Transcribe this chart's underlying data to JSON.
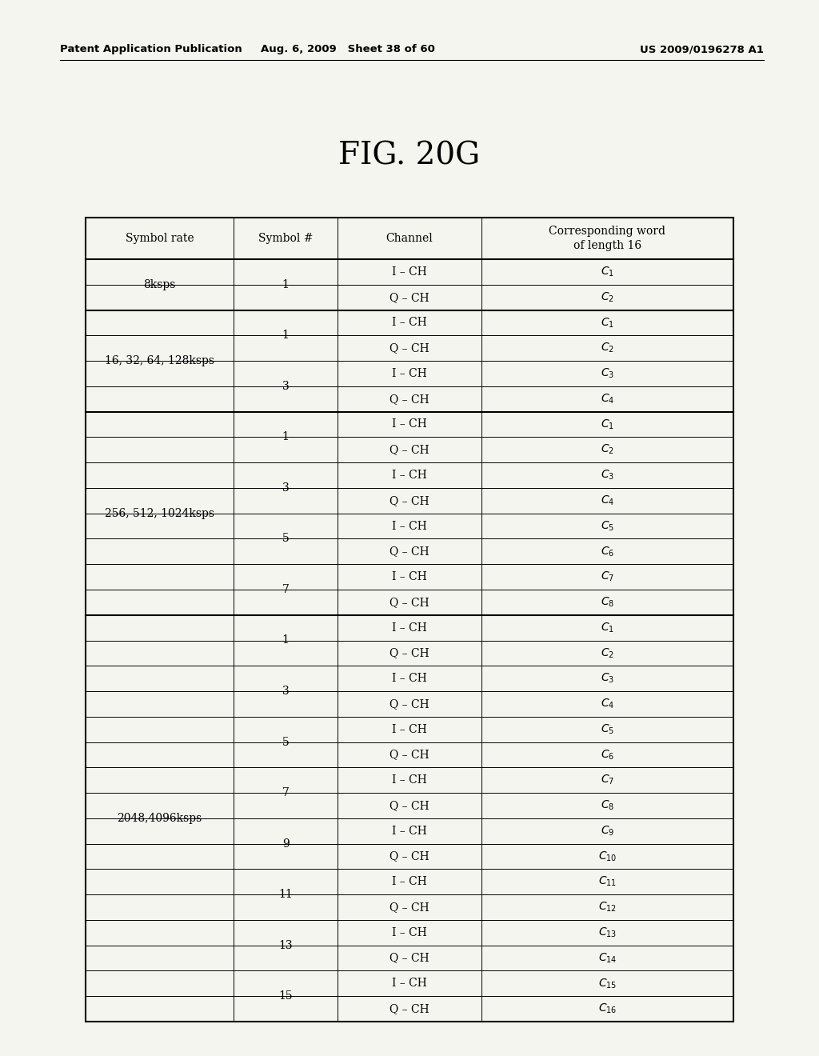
{
  "title": "FIG. 20G",
  "header_line1": "Patent Application Publication",
  "header_line2": "Aug. 6, 2009   Sheet 38 of 60",
  "header_line3": "US 2009/0196278 A1",
  "col_headers": [
    "Symbol rate",
    "Symbol #",
    "Channel",
    "Corresponding word\nof length 16"
  ],
  "rows": [
    {
      "symbol_rate": "8ksps",
      "sr_span": 2,
      "symbol_num": "1",
      "sn_span": 2,
      "channel": "I – CH",
      "word": "C",
      "sub": "1"
    },
    {
      "symbol_rate": "",
      "sr_span": 0,
      "symbol_num": "",
      "sn_span": 0,
      "channel": "Q – CH",
      "word": "C",
      "sub": "2"
    },
    {
      "symbol_rate": "16, 32, 64, 128ksps",
      "sr_span": 4,
      "symbol_num": "1",
      "sn_span": 2,
      "channel": "I – CH",
      "word": "C",
      "sub": "1"
    },
    {
      "symbol_rate": "",
      "sr_span": 0,
      "symbol_num": "",
      "sn_span": 0,
      "channel": "Q – CH",
      "word": "C",
      "sub": "2"
    },
    {
      "symbol_rate": "",
      "sr_span": 0,
      "symbol_num": "3",
      "sn_span": 2,
      "channel": "I – CH",
      "word": "C",
      "sub": "3"
    },
    {
      "symbol_rate": "",
      "sr_span": 0,
      "symbol_num": "",
      "sn_span": 0,
      "channel": "Q – CH",
      "word": "C",
      "sub": "4"
    },
    {
      "symbol_rate": "256, 512, 1024ksps",
      "sr_span": 8,
      "symbol_num": "1",
      "sn_span": 2,
      "channel": "I – CH",
      "word": "C",
      "sub": "1"
    },
    {
      "symbol_rate": "",
      "sr_span": 0,
      "symbol_num": "",
      "sn_span": 0,
      "channel": "Q – CH",
      "word": "C",
      "sub": "2"
    },
    {
      "symbol_rate": "",
      "sr_span": 0,
      "symbol_num": "3",
      "sn_span": 2,
      "channel": "I – CH",
      "word": "C",
      "sub": "3"
    },
    {
      "symbol_rate": "",
      "sr_span": 0,
      "symbol_num": "",
      "sn_span": 0,
      "channel": "Q – CH",
      "word": "C",
      "sub": "4"
    },
    {
      "symbol_rate": "",
      "sr_span": 0,
      "symbol_num": "5",
      "sn_span": 2,
      "channel": "I – CH",
      "word": "C",
      "sub": "5"
    },
    {
      "symbol_rate": "",
      "sr_span": 0,
      "symbol_num": "",
      "sn_span": 0,
      "channel": "Q – CH",
      "word": "C",
      "sub": "6"
    },
    {
      "symbol_rate": "",
      "sr_span": 0,
      "symbol_num": "7",
      "sn_span": 2,
      "channel": "I – CH",
      "word": "C",
      "sub": "7"
    },
    {
      "symbol_rate": "",
      "sr_span": 0,
      "symbol_num": "",
      "sn_span": 0,
      "channel": "Q – CH",
      "word": "C",
      "sub": "8"
    },
    {
      "symbol_rate": "2048,4096ksps",
      "sr_span": 16,
      "symbol_num": "1",
      "sn_span": 2,
      "channel": "I – CH",
      "word": "C",
      "sub": "1"
    },
    {
      "symbol_rate": "",
      "sr_span": 0,
      "symbol_num": "",
      "sn_span": 0,
      "channel": "Q – CH",
      "word": "C",
      "sub": "2"
    },
    {
      "symbol_rate": "",
      "sr_span": 0,
      "symbol_num": "3",
      "sn_span": 2,
      "channel": "I – CH",
      "word": "C",
      "sub": "3"
    },
    {
      "symbol_rate": "",
      "sr_span": 0,
      "symbol_num": "",
      "sn_span": 0,
      "channel": "Q – CH",
      "word": "C",
      "sub": "4"
    },
    {
      "symbol_rate": "",
      "sr_span": 0,
      "symbol_num": "5",
      "sn_span": 2,
      "channel": "I – CH",
      "word": "C",
      "sub": "5"
    },
    {
      "symbol_rate": "",
      "sr_span": 0,
      "symbol_num": "",
      "sn_span": 0,
      "channel": "Q – CH",
      "word": "C",
      "sub": "6"
    },
    {
      "symbol_rate": "",
      "sr_span": 0,
      "symbol_num": "7",
      "sn_span": 2,
      "channel": "I – CH",
      "word": "C",
      "sub": "7"
    },
    {
      "symbol_rate": "",
      "sr_span": 0,
      "symbol_num": "",
      "sn_span": 0,
      "channel": "Q – CH",
      "word": "C",
      "sub": "8"
    },
    {
      "symbol_rate": "",
      "sr_span": 0,
      "symbol_num": "9",
      "sn_span": 2,
      "channel": "I – CH",
      "word": "C",
      "sub": "9"
    },
    {
      "symbol_rate": "",
      "sr_span": 0,
      "symbol_num": "",
      "sn_span": 0,
      "channel": "Q – CH",
      "word": "C",
      "sub": "10"
    },
    {
      "symbol_rate": "",
      "sr_span": 0,
      "symbol_num": "11",
      "sn_span": 2,
      "channel": "I – CH",
      "word": "C",
      "sub": "11"
    },
    {
      "symbol_rate": "",
      "sr_span": 0,
      "symbol_num": "",
      "sn_span": 0,
      "channel": "Q – CH",
      "word": "C",
      "sub": "12"
    },
    {
      "symbol_rate": "",
      "sr_span": 0,
      "symbol_num": "13",
      "sn_span": 2,
      "channel": "I – CH",
      "word": "C",
      "sub": "13"
    },
    {
      "symbol_rate": "",
      "sr_span": 0,
      "symbol_num": "",
      "sn_span": 0,
      "channel": "Q – CH",
      "word": "C",
      "sub": "14"
    },
    {
      "symbol_rate": "",
      "sr_span": 0,
      "symbol_num": "15",
      "sn_span": 2,
      "channel": "I – CH",
      "word": "C",
      "sub": "15"
    },
    {
      "symbol_rate": "",
      "sr_span": 0,
      "symbol_num": "",
      "sn_span": 0,
      "channel": "Q – CH",
      "word": "C",
      "sub": "16"
    }
  ],
  "group_boundaries": [
    0,
    2,
    6,
    14,
    30
  ],
  "bg_color": "#f5f5f0",
  "line_color": "#000000",
  "text_color": "#000000",
  "font_size_body": 10,
  "font_size_header_col": 10,
  "font_size_title": 28,
  "font_size_page_header": 9.5
}
